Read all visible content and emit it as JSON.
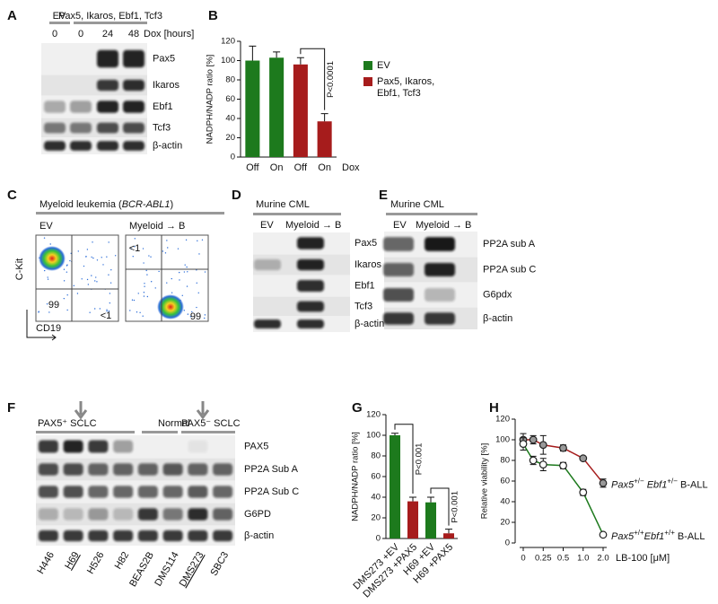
{
  "panels": {
    "A": {
      "label": "A",
      "groups": [
        "EV",
        "Pax5, Ikaros, Ebf1, Tcf3"
      ],
      "lanes": [
        "0",
        "0",
        "24",
        "48"
      ],
      "lane_unit": "Dox [hours]",
      "rows": [
        "Pax5",
        "Ikaros",
        "Ebf1",
        "Tcf3",
        "β-actin"
      ]
    },
    "C": {
      "label": "C",
      "title": [
        "Myeloid leukemia (",
        "BCR-ABL1",
        ")"
      ],
      "plots": [
        {
          "name": "EV",
          "quadrants": [
            "99",
            "<1"
          ]
        },
        {
          "name": "Myeloid → B",
          "quadrants": [
            "<1",
            "99"
          ]
        }
      ],
      "y_label": "C-Kit",
      "x_label": "CD19"
    },
    "D": {
      "label": "D",
      "title": "Murine CML",
      "lanes": [
        "EV",
        "Myeloid → B"
      ],
      "rows": [
        "Pax5",
        "Ikaros",
        "Ebf1",
        "Tcf3",
        "β-actin"
      ]
    },
    "E": {
      "label": "E",
      "title": "Murine CML",
      "lanes": [
        "EV",
        "Myeloid → B"
      ],
      "rows": [
        "PP2A sub A",
        "PP2A sub C",
        "G6pdx",
        "β-actin"
      ]
    },
    "F": {
      "label": "F",
      "groups": [
        "PAX5⁺ SCLC",
        "Normal",
        "PAX5⁻ SCLC"
      ],
      "rows": [
        "PAX5",
        "PP2A Sub A",
        "PP2A Sub C",
        "G6PD",
        "β-actin"
      ],
      "lanes": [
        "H446",
        "H69",
        "H526",
        "H82",
        "BEAS2B",
        "DMS114",
        "DMS273",
        "SBC3"
      ],
      "underlined_lanes": [
        1,
        6
      ]
    }
  },
  "chart_data": [
    {
      "type": "bar",
      "panel": "B",
      "ylabel": "NADPH/NADP ratio [%]",
      "categories": [
        "Off",
        "On",
        "Off",
        "On"
      ],
      "xlabel": "Dox",
      "ylim": [
        0,
        120
      ],
      "yticks": [
        0,
        20,
        40,
        60,
        80,
        100,
        120
      ],
      "legend": "right",
      "series": [
        {
          "name": "EV",
          "color": "#1d7a1d",
          "values": [
            100,
            103,
            null,
            null
          ],
          "errors": [
            15,
            6,
            null,
            null
          ]
        },
        {
          "name": "Pax5, Ikaros, Ebf1, Tcf3",
          "color": "#a61c1c",
          "values": [
            null,
            null,
            96,
            37
          ],
          "errors": [
            null,
            null,
            7,
            8
          ]
        }
      ],
      "annotations": [
        "P<0.0001"
      ]
    },
    {
      "type": "bar",
      "panel": "G",
      "ylabel": "NADPH/NADP ratio [%]",
      "categories": [
        "DMS273 +EV",
        "DMS273 +PAX5",
        "H69 +EV",
        "H69 +PAX5"
      ],
      "values": [
        100,
        36,
        35,
        5
      ],
      "errors": [
        2,
        4,
        5,
        4
      ],
      "colors": [
        "#1d7a1d",
        "#a61c1c",
        "#1d7a1d",
        "#a61c1c"
      ],
      "ylim": [
        0,
        120
      ],
      "yticks": [
        0,
        20,
        40,
        60,
        80,
        100,
        120
      ],
      "annotations": [
        "P<0.001",
        "P<0.001"
      ]
    },
    {
      "type": "line",
      "panel": "H",
      "ylabel": "Relative viability [%]",
      "xlabel": "LB-100 [μM]",
      "x": [
        0,
        0.125,
        0.25,
        0.5,
        1,
        2
      ],
      "xlim": [
        0,
        2
      ],
      "xscale": "tick-spaced",
      "xticks": [
        0,
        0.25,
        0.5,
        {
          "value": 1,
          "label": "1.0"
        },
        {
          "value": 2,
          "label": "2.0"
        }
      ],
      "ylim": [
        0,
        120
      ],
      "yticks": [
        0,
        20,
        40,
        60,
        80,
        100,
        120
      ],
      "legend": "line-end",
      "series": [
        {
          "name": "Pax5+/− Ebf1+/− B-ALL",
          "color": "#a61c1c",
          "marker_fill": "#999999",
          "values": [
            100,
            100,
            95,
            92,
            82,
            58
          ],
          "errors": [
            6,
            4,
            9,
            3,
            1,
            4
          ]
        },
        {
          "name": "Pax5+/+Ebf1+/+ B-ALL",
          "color": "#1d7a1d",
          "marker_fill": "#ffffff",
          "values": [
            96,
            80,
            76,
            75,
            49,
            8
          ],
          "errors": [
            6,
            4,
            6,
            3,
            3,
            1
          ]
        }
      ]
    }
  ]
}
